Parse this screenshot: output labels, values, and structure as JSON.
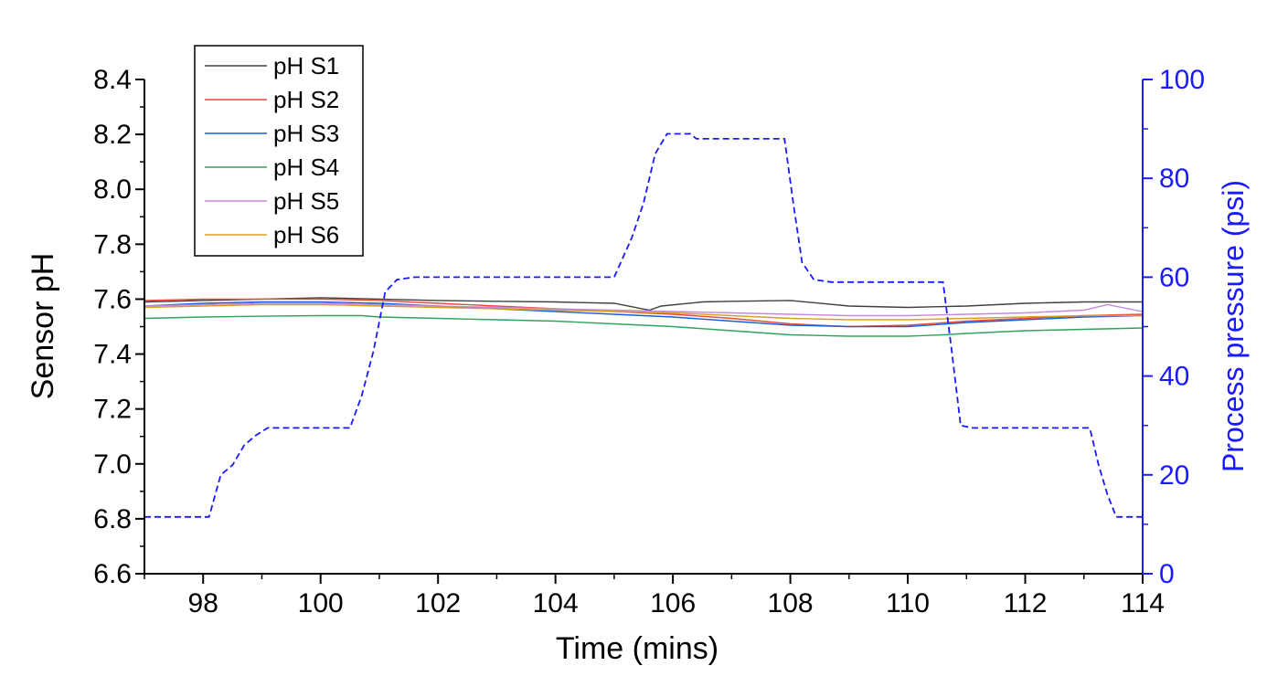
{
  "chart_data": {
    "type": "line",
    "xlabel": "Time (mins)",
    "ylabel": "Sensor pH",
    "y2label": "Process pressure (psi)",
    "xlim": [
      97,
      114
    ],
    "ylim": [
      6.6,
      8.4
    ],
    "y2lim": [
      0,
      100
    ],
    "xticks": [
      "98",
      "100",
      "102",
      "104",
      "106",
      "108",
      "110",
      "112",
      "114"
    ],
    "yticks": [
      "6.6",
      "6.8",
      "7.0",
      "7.2",
      "7.4",
      "7.6",
      "7.8",
      "8.0",
      "8.2",
      "8.4"
    ],
    "y2ticks": [
      "0",
      "20",
      "40",
      "60",
      "80",
      "100"
    ],
    "legend_position": "top-left",
    "series": [
      {
        "name": "pH S1",
        "color": "#404040",
        "axis": "left",
        "x": [
          97,
          98,
          99,
          100,
          101,
          102,
          103,
          104,
          105,
          105.6,
          105.8,
          106.5,
          107,
          108,
          109,
          110,
          111,
          112,
          113,
          114
        ],
        "y": [
          7.59,
          7.595,
          7.6,
          7.605,
          7.6,
          7.595,
          7.592,
          7.59,
          7.585,
          7.56,
          7.575,
          7.59,
          7.592,
          7.595,
          7.575,
          7.57,
          7.575,
          7.585,
          7.59,
          7.59
        ]
      },
      {
        "name": "pH S2",
        "color": "#e84a3c",
        "axis": "left",
        "x": [
          97,
          98,
          99,
          100,
          101,
          102,
          103,
          104,
          105,
          106,
          107,
          108,
          109,
          110,
          111,
          112,
          113,
          114
        ],
        "y": [
          7.595,
          7.6,
          7.6,
          7.6,
          7.595,
          7.585,
          7.575,
          7.565,
          7.555,
          7.545,
          7.53,
          7.51,
          7.5,
          7.505,
          7.52,
          7.53,
          7.54,
          7.545
        ]
      },
      {
        "name": "pH S3",
        "color": "#1560e0",
        "axis": "left",
        "x": [
          97,
          98,
          99,
          100,
          101,
          102,
          103,
          104,
          105,
          106,
          107,
          108,
          109,
          110,
          111,
          112,
          113,
          114
        ],
        "y": [
          7.575,
          7.585,
          7.59,
          7.59,
          7.585,
          7.575,
          7.565,
          7.555,
          7.545,
          7.535,
          7.52,
          7.505,
          7.5,
          7.5,
          7.515,
          7.525,
          7.535,
          7.54
        ]
      },
      {
        "name": "pH S4",
        "color": "#2ea35a",
        "axis": "left",
        "x": [
          97,
          98,
          99,
          100,
          100.7,
          101,
          102,
          103,
          104,
          105,
          106,
          107,
          108,
          109,
          110,
          110.6,
          111,
          112,
          113,
          114
        ],
        "y": [
          7.53,
          7.535,
          7.538,
          7.54,
          7.54,
          7.535,
          7.53,
          7.525,
          7.52,
          7.51,
          7.5,
          7.485,
          7.47,
          7.465,
          7.465,
          7.47,
          7.475,
          7.485,
          7.49,
          7.495
        ]
      },
      {
        "name": "pH S5",
        "color": "#c08ae0",
        "axis": "left",
        "x": [
          97,
          98,
          99,
          100,
          101,
          102,
          103,
          104,
          105,
          106,
          107,
          108,
          109,
          110,
          111,
          112,
          113,
          113.4,
          114
        ],
        "y": [
          7.575,
          7.58,
          7.585,
          7.585,
          7.58,
          7.575,
          7.57,
          7.565,
          7.56,
          7.555,
          7.55,
          7.545,
          7.54,
          7.54,
          7.545,
          7.55,
          7.56,
          7.58,
          7.555
        ]
      },
      {
        "name": "pH S6",
        "color": "#d9a020",
        "axis": "left",
        "x": [
          97,
          98,
          99,
          100,
          101,
          102,
          103,
          104,
          105,
          106,
          107,
          108,
          109,
          110,
          111,
          112,
          113,
          114
        ],
        "y": [
          7.57,
          7.575,
          7.58,
          7.58,
          7.575,
          7.57,
          7.565,
          7.56,
          7.555,
          7.55,
          7.54,
          7.53,
          7.525,
          7.525,
          7.53,
          7.535,
          7.54,
          7.54
        ]
      },
      {
        "name": "",
        "color": "#1a1aff",
        "axis": "right",
        "dashed": true,
        "x": [
          97,
          98.1,
          98.3,
          98.5,
          98.7,
          98.9,
          99.1,
          100.5,
          100.7,
          100.9,
          101.1,
          101.3,
          101.6,
          105.0,
          105.3,
          105.5,
          105.7,
          105.9,
          106.3,
          106.4,
          107.9,
          108.05,
          108.2,
          108.4,
          108.7,
          110.6,
          110.75,
          110.9,
          111.1,
          113.1,
          113.25,
          113.4,
          113.55,
          113.9,
          114
        ],
        "y": [
          11.5,
          11.5,
          20,
          22,
          26,
          28,
          29.5,
          29.5,
          36,
          45,
          57,
          59.5,
          60,
          60,
          68,
          75,
          85,
          89,
          89,
          88,
          88,
          75,
          63,
          59.5,
          59,
          59,
          45,
          30,
          29.5,
          29.5,
          22,
          16,
          11.5,
          11.5,
          11.5
        ]
      }
    ]
  }
}
